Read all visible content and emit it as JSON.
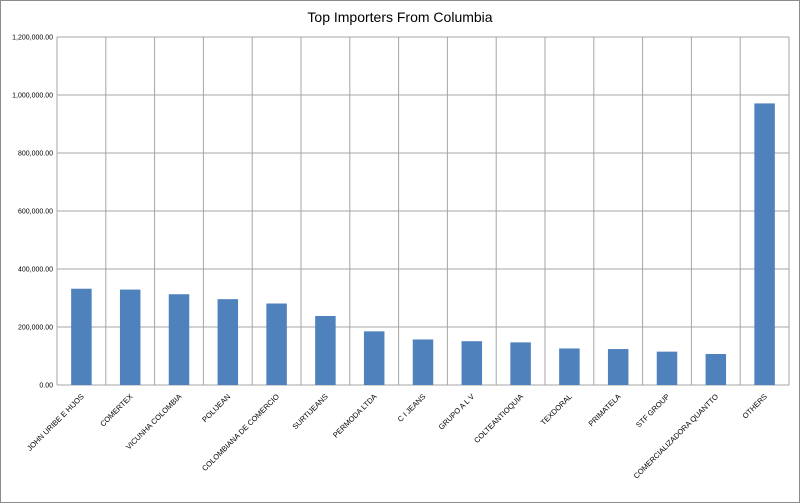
{
  "chart_data": {
    "type": "bar",
    "title": "Top Importers From Columbia",
    "xlabel": "",
    "ylabel": "",
    "ylim": [
      0,
      1200000
    ],
    "yticks": [
      0,
      200000,
      400000,
      600000,
      800000,
      1000000,
      1200000
    ],
    "ytick_labels": [
      "0.00",
      "200,000.00",
      "400,000.00",
      "600,000.00",
      "800,000.00",
      "1,000,000.00",
      "1,200,000.00"
    ],
    "grid": true,
    "legend": "none",
    "bar_color": "#4f81bd",
    "categories": [
      "JOHN URIBE E HIJOS",
      "COMERTEX",
      "VICUNHA COLOMBIA",
      "POLIJEAN",
      "COLOMBIANA DE COMERCIO",
      "SURTIJEANS",
      "PERMODA LTDA",
      "C I JEANS",
      "GRUPO A L V",
      "COLTEANTIOQUIA",
      "TEXDORAL",
      "PRIMATELA",
      "STF GROUP",
      "COMERCIALIZADORA QUANTTO",
      "OTHERS"
    ],
    "values": [
      332000,
      329000,
      313000,
      296000,
      281000,
      238000,
      185000,
      157000,
      151000,
      147000,
      126000,
      124000,
      115000,
      107000,
      971000
    ]
  }
}
